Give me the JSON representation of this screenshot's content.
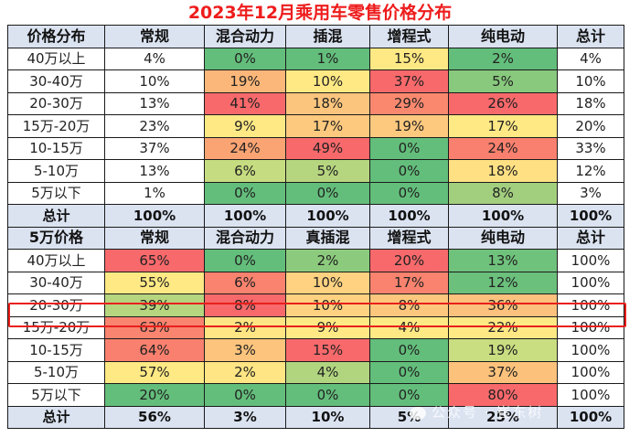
{
  "title": "2023年12月乘用车零售价格分布",
  "colors": {
    "title_red": "#ee1c1c",
    "header_bg": "#dbe3f1",
    "highlight_border": "#e8201c",
    "scale_green": "#63be7b",
    "scale_yellow": "#ffe984",
    "scale_red": "#f8696b"
  },
  "table1": {
    "headers": [
      "价格分布",
      "常规",
      "混合动力",
      "插混",
      "增程式",
      "纯电动",
      "总计"
    ],
    "rows": [
      {
        "label": "40万以上",
        "values": [
          "4%",
          "0%",
          "1%",
          "15%",
          "2%",
          "4%"
        ],
        "colors": [
          "#ffffff",
          "#63be7b",
          "#63be7b",
          "#ffe984",
          "#63be7b",
          "#ffffff"
        ]
      },
      {
        "label": "30-40万",
        "values": [
          "10%",
          "19%",
          "10%",
          "37%",
          "5%",
          "10%"
        ],
        "colors": [
          "#ffffff",
          "#fbb779",
          "#ffe984",
          "#f8696b",
          "#88c97d",
          "#ffffff"
        ]
      },
      {
        "label": "20-30万",
        "values": [
          "13%",
          "41%",
          "18%",
          "29%",
          "26%",
          "18%"
        ],
        "colors": [
          "#ffffff",
          "#f8696b",
          "#fcc57d",
          "#f9886f",
          "#f8696b",
          "#ffffff"
        ]
      },
      {
        "label": "15万-20万",
        "values": [
          "23%",
          "9%",
          "17%",
          "19%",
          "17%",
          "20%"
        ],
        "colors": [
          "#ffffff",
          "#ffe984",
          "#fdc97e",
          "#fdc97e",
          "#ffe984",
          "#ffffff"
        ]
      },
      {
        "label": "10-15万",
        "values": [
          "37%",
          "24%",
          "49%",
          "0%",
          "24%",
          "33%"
        ],
        "colors": [
          "#ffffff",
          "#faa474",
          "#f8696b",
          "#63be7b",
          "#f9806e",
          "#ffffff"
        ]
      },
      {
        "label": "5-10万",
        "values": [
          "13%",
          "6%",
          "5%",
          "0%",
          "18%",
          "12%"
        ],
        "colors": [
          "#ffffff",
          "#c6dc80",
          "#b6d57f",
          "#63be7b",
          "#ffe083",
          "#ffffff"
        ]
      },
      {
        "label": "5万以下",
        "values": [
          "1%",
          "0%",
          "0%",
          "0%",
          "8%",
          "3%"
        ],
        "colors": [
          "#ffffff",
          "#63be7b",
          "#63be7b",
          "#63be7b",
          "#a2cf7e",
          "#ffffff"
        ]
      }
    ],
    "total": {
      "label": "总计",
      "values": [
        "100%",
        "100%",
        "100%",
        "100%",
        "100%",
        "100%"
      ]
    }
  },
  "table2": {
    "headers": [
      "5万价格",
      "常规",
      "混合动力",
      "真插混",
      "增程式",
      "纯电动",
      "总计"
    ],
    "rows": [
      {
        "label": "40万以上",
        "values": [
          "65%",
          "0%",
          "2%",
          "20%",
          "13%",
          "100%"
        ],
        "colors": [
          "#f8696b",
          "#63be7b",
          "#8ccb7d",
          "#f8696b",
          "#6fc27c",
          "#ffffff"
        ]
      },
      {
        "label": "30-40万",
        "values": [
          "55%",
          "6%",
          "10%",
          "17%",
          "12%",
          "100%"
        ],
        "colors": [
          "#ffe984",
          "#f9836e",
          "#fed280",
          "#f9836e",
          "#6bc07c",
          "#ffffff"
        ]
      },
      {
        "label": "20-30万",
        "values": [
          "39%",
          "8%",
          "10%",
          "8%",
          "36%",
          "100%"
        ],
        "colors": [
          "#b6d57f",
          "#f8696b",
          "#fed280",
          "#fdc77d",
          "#fcc17c",
          "#ffffff"
        ]
      },
      {
        "label": "15万-20万",
        "values": [
          "63%",
          "2%",
          "9%",
          "4%",
          "22%",
          "100%"
        ],
        "colors": [
          "#f98470",
          "#ffe583",
          "#ffe984",
          "#ffe984",
          "#ffe984",
          "#ffffff"
        ]
      },
      {
        "label": "10-15万",
        "values": [
          "64%",
          "3%",
          "15%",
          "0%",
          "19%",
          "100%"
        ],
        "colors": [
          "#f9806e",
          "#fcc47c",
          "#f8696b",
          "#63be7b",
          "#c9dd81",
          "#ffffff"
        ]
      },
      {
        "label": "5-10万",
        "values": [
          "57%",
          "2%",
          "4%",
          "0%",
          "37%",
          "100%"
        ],
        "colors": [
          "#ffe984",
          "#ffe583",
          "#b1d47f",
          "#63be7b",
          "#fcc27c",
          "#ffffff"
        ]
      },
      {
        "label": "5万以下",
        "values": [
          "20%",
          "0%",
          "0%",
          "0%",
          "80%",
          "100%"
        ],
        "colors": [
          "#63be7b",
          "#63be7b",
          "#63be7b",
          "#63be7b",
          "#f8696b",
          "#ffffff"
        ]
      }
    ],
    "total": {
      "label": "总计",
      "values": [
        "56%",
        "3%",
        "10%",
        "5%",
        "25%",
        "100%"
      ]
    }
  },
  "watermark": "公众号 · 崔东树"
}
